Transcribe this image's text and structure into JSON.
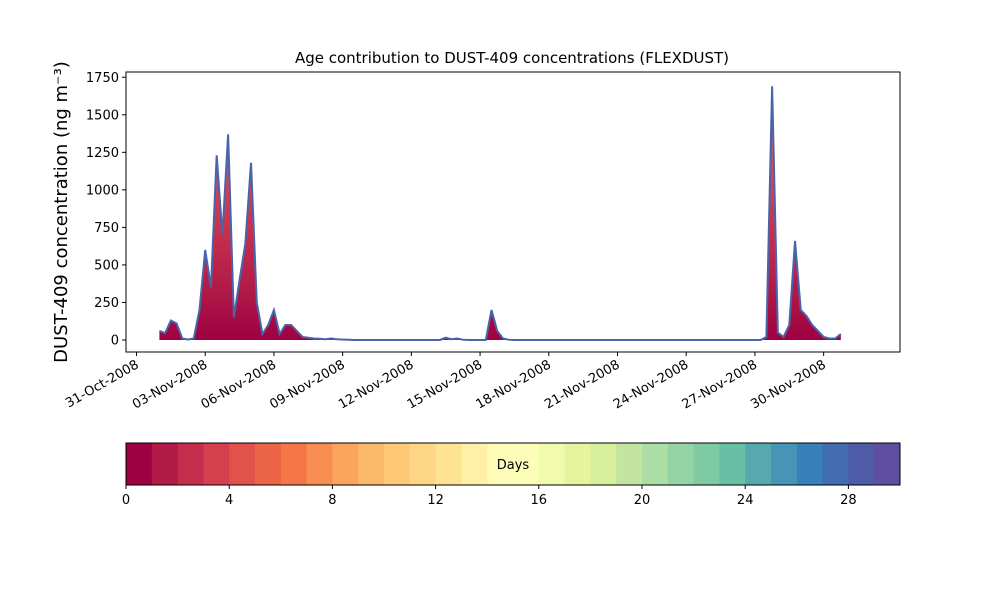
{
  "chart_data": {
    "type": "area",
    "title": "Age contribution to DUST-409 concentrations (FLEXDUST)",
    "ylabel": "DUST-409 concentration (ng m⁻³)",
    "color": "#4a64ab",
    "x": [
      "2008-11-01T00:00",
      "2008-11-01T06:00",
      "2008-11-01T12:00",
      "2008-11-01T18:00",
      "2008-11-02T00:00",
      "2008-11-02T06:00",
      "2008-11-02T12:00",
      "2008-11-02T18:00",
      "2008-11-03T00:00",
      "2008-11-03T06:00",
      "2008-11-03T12:00",
      "2008-11-03T18:00",
      "2008-11-04T00:00",
      "2008-11-04T06:00",
      "2008-11-04T12:00",
      "2008-11-04T18:00",
      "2008-11-05T00:00",
      "2008-11-05T06:00",
      "2008-11-05T12:00",
      "2008-11-05T18:00",
      "2008-11-06T00:00",
      "2008-11-06T06:00",
      "2008-11-06T12:00",
      "2008-11-06T18:00",
      "2008-11-07T00:00",
      "2008-11-07T06:00",
      "2008-11-07T12:00",
      "2008-11-07T18:00",
      "2008-11-08T00:00",
      "2008-11-08T06:00",
      "2008-11-08T12:00",
      "2008-11-08T18:00",
      "2008-11-09T00:00",
      "2008-11-09T06:00",
      "2008-11-09T12:00",
      "2008-11-09T18:00",
      "2008-11-10T00:00",
      "2008-11-10T06:00",
      "2008-11-10T12:00",
      "2008-11-10T18:00",
      "2008-11-11T00:00",
      "2008-11-11T06:00",
      "2008-11-11T12:00",
      "2008-11-11T18:00",
      "2008-11-12T00:00",
      "2008-11-12T06:00",
      "2008-11-12T12:00",
      "2008-11-12T18:00",
      "2008-11-13T00:00",
      "2008-11-13T06:00",
      "2008-11-13T12:00",
      "2008-11-13T18:00",
      "2008-11-14T00:00",
      "2008-11-14T06:00",
      "2008-11-14T12:00",
      "2008-11-14T18:00",
      "2008-11-15T00:00",
      "2008-11-15T06:00",
      "2008-11-15T12:00",
      "2008-11-15T18:00",
      "2008-11-16T00:00",
      "2008-11-16T06:00",
      "2008-11-16T12:00",
      "2008-11-16T18:00",
      "2008-11-17T00:00",
      "2008-11-17T06:00",
      "2008-11-17T12:00",
      "2008-11-17T18:00",
      "2008-11-18T00:00",
      "2008-11-18T06:00",
      "2008-11-18T12:00",
      "2008-11-18T18:00",
      "2008-11-19T00:00",
      "2008-11-19T06:00",
      "2008-11-19T12:00",
      "2008-11-19T18:00",
      "2008-11-20T00:00",
      "2008-11-20T06:00",
      "2008-11-20T12:00",
      "2008-11-20T18:00",
      "2008-11-21T00:00",
      "2008-11-21T06:00",
      "2008-11-21T12:00",
      "2008-11-21T18:00",
      "2008-11-22T00:00",
      "2008-11-22T06:00",
      "2008-11-22T12:00",
      "2008-11-22T18:00",
      "2008-11-23T00:00",
      "2008-11-23T06:00",
      "2008-11-23T12:00",
      "2008-11-23T18:00",
      "2008-11-24T00:00",
      "2008-11-24T06:00",
      "2008-11-24T12:00",
      "2008-11-24T18:00",
      "2008-11-25T00:00",
      "2008-11-25T06:00",
      "2008-11-25T12:00",
      "2008-11-25T18:00",
      "2008-11-26T00:00",
      "2008-11-26T06:00",
      "2008-11-26T12:00",
      "2008-11-26T18:00",
      "2008-11-27T00:00",
      "2008-11-27T06:00",
      "2008-11-27T12:00",
      "2008-11-27T18:00",
      "2008-11-28T00:00",
      "2008-11-28T06:00",
      "2008-11-28T12:00",
      "2008-11-28T18:00",
      "2008-11-29T00:00",
      "2008-11-29T06:00",
      "2008-11-29T12:00",
      "2008-11-29T18:00",
      "2008-11-30T00:00",
      "2008-11-30T06:00",
      "2008-11-30T12:00",
      "2008-11-30T18:00"
    ],
    "values": [
      60,
      45,
      130,
      110,
      10,
      3,
      10,
      200,
      600,
      350,
      1230,
      700,
      1370,
      150,
      400,
      640,
      1180,
      250,
      40,
      100,
      200,
      40,
      100,
      100,
      60,
      20,
      15,
      10,
      8,
      5,
      10,
      5,
      3,
      2,
      0,
      0,
      0,
      0,
      0,
      0,
      0,
      0,
      0,
      0,
      0,
      0,
      0,
      0,
      0,
      0,
      15,
      5,
      10,
      2,
      0,
      0,
      0,
      0,
      200,
      60,
      10,
      2,
      0,
      0,
      0,
      0,
      0,
      0,
      0,
      0,
      0,
      0,
      0,
      0,
      0,
      0,
      0,
      0,
      0,
      0,
      0,
      0,
      0,
      0,
      0,
      0,
      0,
      0,
      0,
      0,
      0,
      0,
      0,
      0,
      0,
      0,
      0,
      0,
      0,
      0,
      0,
      0,
      0,
      0,
      0,
      0,
      20,
      1690,
      50,
      20,
      100,
      660,
      200,
      160,
      100,
      60,
      20,
      10,
      10,
      40
    ],
    "xlim": [
      "2008-10-30T13:00",
      "2008-12-03T08:00"
    ],
    "xticks": [
      {
        "value": "2008-10-31T00:00",
        "label": "31-Oct-2008"
      },
      {
        "value": "2008-11-03T00:00",
        "label": "03-Nov-2008"
      },
      {
        "value": "2008-11-06T00:00",
        "label": "06-Nov-2008"
      },
      {
        "value": "2008-11-09T00:00",
        "label": "09-Nov-2008"
      },
      {
        "value": "2008-11-12T00:00",
        "label": "12-Nov-2008"
      },
      {
        "value": "2008-11-15T00:00",
        "label": "15-Nov-2008"
      },
      {
        "value": "2008-11-18T00:00",
        "label": "18-Nov-2008"
      },
      {
        "value": "2008-11-21T00:00",
        "label": "21-Nov-2008"
      },
      {
        "value": "2008-11-24T00:00",
        "label": "24-Nov-2008"
      },
      {
        "value": "2008-11-27T00:00",
        "label": "27-Nov-2008"
      },
      {
        "value": "2008-11-30T00:00",
        "label": "30-Nov-2008"
      }
    ],
    "ylim": [
      -80,
      1785
    ],
    "yticks": [
      0,
      250,
      500,
      750,
      1000,
      1250,
      1500,
      1750
    ],
    "colorbar": {
      "label": "Days",
      "lim": [
        0,
        30
      ],
      "ticks": [
        0,
        4,
        8,
        12,
        16,
        20,
        24,
        28
      ],
      "colors": [
        "#9e0142",
        "#b11a47",
        "#c42e4c",
        "#d6404e",
        "#e1524a",
        "#ec6446",
        "#f57748",
        "#f98e52",
        "#fca55d",
        "#fdb96a",
        "#fec877",
        "#fed685",
        "#fee393",
        "#fff0a6",
        "#fffbb8",
        "#fbfdb9",
        "#f2faac",
        "#e6f59d",
        "#d7ef9b",
        "#c2e69f",
        "#abdda4",
        "#94d3a4",
        "#7ecaa5",
        "#67bfa4",
        "#56aaad",
        "#4695b6",
        "#3880ba",
        "#416db0",
        "#4e5ba8",
        "#5e4fa2"
      ]
    }
  }
}
